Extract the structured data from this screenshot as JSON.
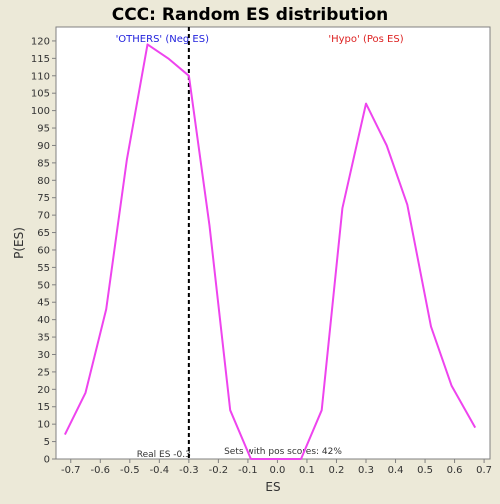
{
  "chart_data": {
    "type": "line",
    "title": "CCC: Random ES distribution",
    "xlabel": "ES",
    "ylabel": "P(ES)",
    "xlim": [
      -0.75,
      0.72
    ],
    "ylim": [
      0,
      124
    ],
    "x_ticks": [
      -0.7,
      -0.6,
      -0.5,
      -0.4,
      -0.3,
      -0.2,
      -0.1,
      0.0,
      0.1,
      0.2,
      0.3,
      0.4,
      0.5,
      0.6,
      0.7
    ],
    "y_ticks": [
      0,
      5,
      10,
      15,
      20,
      25,
      30,
      35,
      40,
      45,
      50,
      55,
      60,
      65,
      70,
      75,
      80,
      85,
      90,
      95,
      100,
      105,
      110,
      115,
      120
    ],
    "grid": false,
    "series": [
      {
        "name": "",
        "color": "#ee44ee",
        "x": [
          -0.72,
          -0.65,
          -0.58,
          -0.51,
          -0.44,
          -0.37,
          -0.3,
          -0.23,
          -0.16,
          -0.09,
          -0.02,
          0.08,
          0.15,
          0.22,
          0.3,
          0.37,
          0.44,
          0.52,
          0.59,
          0.67
        ],
        "y": [
          7,
          19,
          43,
          86,
          119,
          115,
          110,
          67,
          14,
          0,
          0,
          0,
          14,
          72,
          102,
          90,
          73,
          38,
          21,
          9
        ]
      }
    ],
    "real_es": {
      "value": -0.3,
      "label": "Real ES -0.3"
    },
    "annotations": {
      "neg_label": "'OTHERS' (Neg ES)",
      "neg_color": "#2222dd",
      "pos_label": "'Hypo' (Pos ES)",
      "pos_color": "#dd2222",
      "pos_scores": "Sets with pos scores: 42%"
    },
    "colors": {
      "background": "#ece9d8",
      "plot_background": "#ffffff",
      "axis": "#808080",
      "text": "#333333"
    }
  }
}
